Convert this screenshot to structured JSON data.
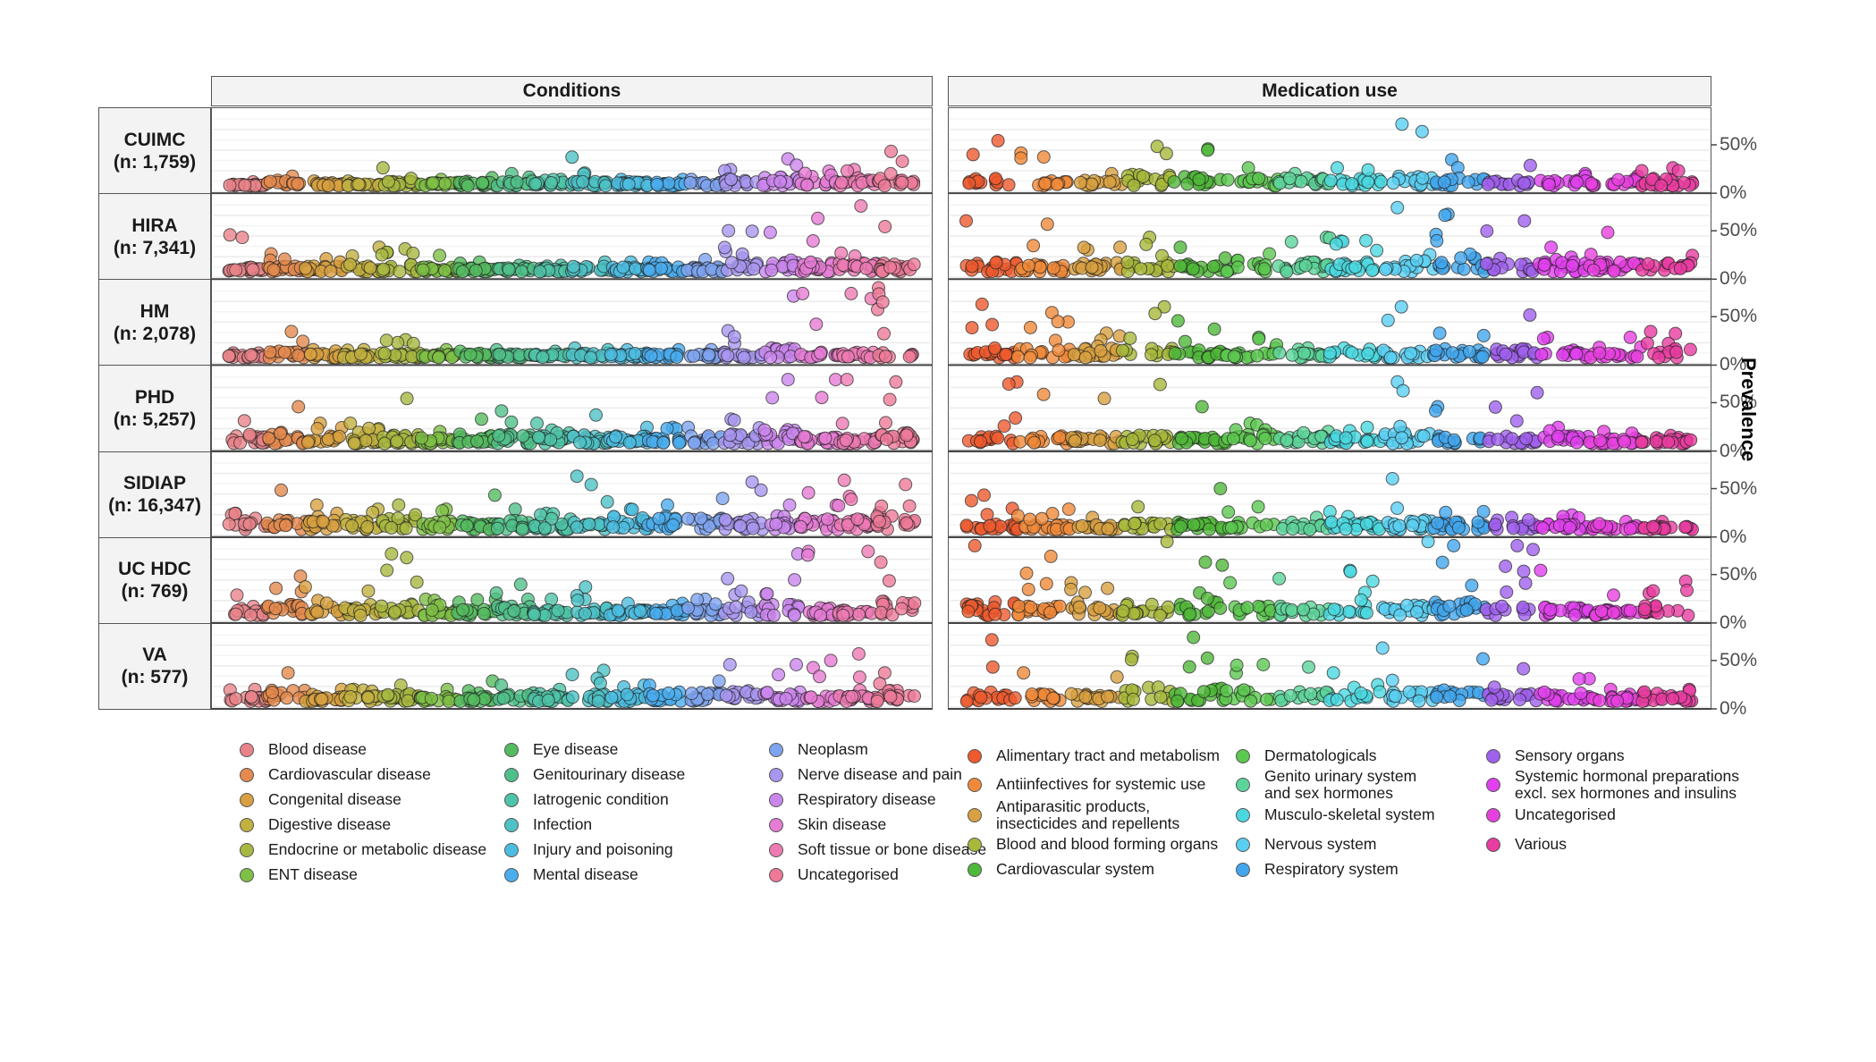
{
  "chart_data": {
    "type": "scatter",
    "title": "",
    "ylabel": "Prevalence",
    "xlabel": "",
    "ylim": [
      0,
      1
    ],
    "yticks": [
      "0%",
      "50%"
    ],
    "grid": true,
    "legend_placement": "bottom",
    "facets_columns": [
      "Conditions",
      "Medication use"
    ],
    "facets_rows": [
      {
        "name": "CUIMC",
        "n": "(n: 1,759)"
      },
      {
        "name": "HIRA",
        "n": "(n: 7,341)"
      },
      {
        "name": "HM",
        "n": "(n: 2,078)"
      },
      {
        "name": "PHD",
        "n": "(n: 5,257)"
      },
      {
        "name": "SIDIAP",
        "n": "(n: 16,347)"
      },
      {
        "name": "UC HDC",
        "n": "(n: 769)"
      },
      {
        "name": "VA",
        "n": "(n: 577)"
      }
    ],
    "conditions_categories": [
      {
        "name": "Blood disease",
        "color": "#E8838A"
      },
      {
        "name": "Cardiovascular disease",
        "color": "#E48A4E"
      },
      {
        "name": "Congenital disease",
        "color": "#D8A040"
      },
      {
        "name": "Digestive disease",
        "color": "#C2B040"
      },
      {
        "name": "Endocrine or metabolic disease",
        "color": "#A9B840"
      },
      {
        "name": "ENT disease",
        "color": "#7EBF45"
      },
      {
        "name": "Eye disease",
        "color": "#55BB60"
      },
      {
        "name": "Genitourinary disease",
        "color": "#50C08A"
      },
      {
        "name": "Iatrogenic condition",
        "color": "#4FC4A8"
      },
      {
        "name": "Infection",
        "color": "#4EC2C6"
      },
      {
        "name": "Injury and poisoning",
        "color": "#4CBDE0"
      },
      {
        "name": "Mental disease",
        "color": "#4AADEE"
      },
      {
        "name": "Neoplasm",
        "color": "#7EA4F0"
      },
      {
        "name": "Nerve disease and pain",
        "color": "#A996F0"
      },
      {
        "name": "Respiratory disease",
        "color": "#CB86EE"
      },
      {
        "name": "Skin disease",
        "color": "#E67CD4"
      },
      {
        "name": "Soft tissue or bone disease",
        "color": "#EE7AB4"
      },
      {
        "name": "Uncategorised",
        "color": "#EE7A98"
      }
    ],
    "medication_categories": [
      {
        "name": "Alimentary tract and metabolism",
        "color": "#EE5A2E"
      },
      {
        "name": "Antiinfectives for systemic use",
        "color": "#F08A3A"
      },
      {
        "name": "Antiparasitic products,\ninsecticides and repellents",
        "color": "#D8A040"
      },
      {
        "name": "Blood and blood forming organs",
        "color": "#A8B83A"
      },
      {
        "name": "Cardiovascular system",
        "color": "#50B83A"
      },
      {
        "name": "Dermatologicals",
        "color": "#5CC850"
      },
      {
        "name": "Genito urinary system\nand sex hormones",
        "color": "#5CD59A"
      },
      {
        "name": "Musculo-skeletal system",
        "color": "#4AD8E0"
      },
      {
        "name": "Nervous system",
        "color": "#5ACFF2"
      },
      {
        "name": "Respiratory system",
        "color": "#42A6EE"
      },
      {
        "name": "Sensory organs",
        "color": "#A060EE"
      },
      {
        "name": "Systemic hormonal preparations\nexcl. sex hormones and insulins",
        "color": "#E040EE"
      },
      {
        "name": "Uncategorised",
        "color": "#E840E0"
      },
      {
        "name": "Various",
        "color": "#E83CA0"
      }
    ],
    "series_summary": {
      "conditions": {
        "CUIMC": [
          [
            0.02,
            0.05
          ],
          [
            0.05,
            0.12
          ],
          [
            0.03,
            0.06
          ],
          [
            0.03,
            0.06
          ],
          [
            0.05,
            0.22
          ],
          [
            0.04,
            0.08
          ],
          [
            0.04,
            0.1
          ],
          [
            0.05,
            0.15
          ],
          [
            0.04,
            0.08
          ],
          [
            0.05,
            0.35
          ],
          [
            0.04,
            0.08
          ],
          [
            0.04,
            0.08
          ],
          [
            0.04,
            0.08
          ],
          [
            0.08,
            0.2
          ],
          [
            0.1,
            0.33
          ],
          [
            0.06,
            0.18
          ],
          [
            0.06,
            0.2
          ],
          [
            0.08,
            0.42
          ]
        ],
        "HIRA": [
          [
            0.05,
            0.45
          ],
          [
            0.06,
            0.22
          ],
          [
            0.06,
            0.16
          ],
          [
            0.08,
            0.3
          ],
          [
            0.08,
            0.28
          ],
          [
            0.05,
            0.2
          ],
          [
            0.04,
            0.12
          ],
          [
            0.04,
            0.08
          ],
          [
            0.04,
            0.08
          ],
          [
            0.06,
            0.12
          ],
          [
            0.05,
            0.12
          ],
          [
            0.05,
            0.12
          ],
          [
            0.05,
            0.15
          ],
          [
            0.1,
            0.5
          ],
          [
            0.1,
            0.48
          ],
          [
            0.1,
            0.65
          ],
          [
            0.1,
            0.8
          ],
          [
            0.1,
            0.55
          ]
        ],
        "HM": [
          [
            0.03,
            0.06
          ],
          [
            0.06,
            0.32
          ],
          [
            0.04,
            0.1
          ],
          [
            0.04,
            0.1
          ],
          [
            0.05,
            0.22
          ],
          [
            0.04,
            0.1
          ],
          [
            0.04,
            0.08
          ],
          [
            0.04,
            0.1
          ],
          [
            0.04,
            0.08
          ],
          [
            0.05,
            0.12
          ],
          [
            0.04,
            0.1
          ],
          [
            0.04,
            0.1
          ],
          [
            0.04,
            0.1
          ],
          [
            0.06,
            0.33
          ],
          [
            0.1,
            0.75
          ],
          [
            0.06,
            0.78
          ],
          [
            0.06,
            0.78
          ],
          [
            0.08,
            0.85
          ]
        ],
        "PHD": [
          [
            0.08,
            0.28
          ],
          [
            0.12,
            0.45
          ],
          [
            0.08,
            0.25
          ],
          [
            0.06,
            0.25
          ],
          [
            0.1,
            0.55
          ],
          [
            0.06,
            0.15
          ],
          [
            0.08,
            0.3
          ],
          [
            0.1,
            0.4
          ],
          [
            0.08,
            0.25
          ],
          [
            0.08,
            0.35
          ],
          [
            0.08,
            0.2
          ],
          [
            0.08,
            0.2
          ],
          [
            0.08,
            0.2
          ],
          [
            0.1,
            0.3
          ],
          [
            0.15,
            0.78
          ],
          [
            0.08,
            0.78
          ],
          [
            0.08,
            0.78
          ],
          [
            0.12,
            0.75
          ]
        ],
        "SIDIAP": [
          [
            0.08,
            0.2
          ],
          [
            0.1,
            0.48
          ],
          [
            0.1,
            0.3
          ],
          [
            0.1,
            0.25
          ],
          [
            0.12,
            0.3
          ],
          [
            0.1,
            0.25
          ],
          [
            0.08,
            0.42
          ],
          [
            0.1,
            0.25
          ],
          [
            0.08,
            0.2
          ],
          [
            0.08,
            0.65
          ],
          [
            0.1,
            0.25
          ],
          [
            0.12,
            0.3
          ],
          [
            0.12,
            0.38
          ],
          [
            0.12,
            0.58
          ],
          [
            0.12,
            0.3
          ],
          [
            0.12,
            0.45
          ],
          [
            0.12,
            0.6
          ],
          [
            0.15,
            0.55
          ]
        ],
        "UC HDC": [
          [
            0.08,
            0.25
          ],
          [
            0.12,
            0.48
          ],
          [
            0.08,
            0.35
          ],
          [
            0.08,
            0.3
          ],
          [
            0.12,
            0.75
          ],
          [
            0.06,
            0.2
          ],
          [
            0.06,
            0.2
          ],
          [
            0.1,
            0.38
          ],
          [
            0.06,
            0.2
          ],
          [
            0.08,
            0.35
          ],
          [
            0.06,
            0.15
          ],
          [
            0.06,
            0.15
          ],
          [
            0.08,
            0.2
          ],
          [
            0.1,
            0.45
          ],
          [
            0.12,
            0.75
          ],
          [
            0.08,
            0.78
          ],
          [
            0.08,
            0.78
          ],
          [
            0.15,
            0.65
          ]
        ],
        "VA": [
          [
            0.06,
            0.15
          ],
          [
            0.12,
            0.35
          ],
          [
            0.06,
            0.15
          ],
          [
            0.06,
            0.15
          ],
          [
            0.08,
            0.2
          ],
          [
            0.06,
            0.15
          ],
          [
            0.08,
            0.25
          ],
          [
            0.08,
            0.2
          ],
          [
            0.06,
            0.15
          ],
          [
            0.08,
            0.38
          ],
          [
            0.08,
            0.2
          ],
          [
            0.08,
            0.2
          ],
          [
            0.1,
            0.25
          ],
          [
            0.12,
            0.45
          ],
          [
            0.1,
            0.45
          ],
          [
            0.06,
            0.5
          ],
          [
            0.06,
            0.58
          ],
          [
            0.12,
            0.35
          ]
        ]
      },
      "medication": {
        "CUIMC": [
          [
            0.08,
            0.55
          ],
          [
            0.06,
            0.4
          ],
          [
            0.06,
            0.15
          ],
          [
            0.12,
            0.48
          ],
          [
            0.1,
            0.45
          ],
          [
            0.08,
            0.22
          ],
          [
            0.08,
            0.15
          ],
          [
            0.08,
            0.22
          ],
          [
            0.1,
            0.75
          ],
          [
            0.08,
            0.32
          ],
          [
            0.06,
            0.25
          ],
          [
            0.06,
            0.15
          ],
          [
            0.05,
            0.12
          ],
          [
            0.08,
            0.22
          ]
        ],
        "HIRA": [
          [
            0.1,
            0.62
          ],
          [
            0.08,
            0.58
          ],
          [
            0.1,
            0.3
          ],
          [
            0.1,
            0.42
          ],
          [
            0.08,
            0.3
          ],
          [
            0.08,
            0.22
          ],
          [
            0.1,
            0.42
          ],
          [
            0.1,
            0.38
          ],
          [
            0.12,
            0.78
          ],
          [
            0.15,
            0.7
          ],
          [
            0.1,
            0.62
          ],
          [
            0.1,
            0.3
          ],
          [
            0.1,
            0.48
          ],
          [
            0.1,
            0.2
          ]
        ],
        "HM": [
          [
            0.08,
            0.65
          ],
          [
            0.1,
            0.55
          ],
          [
            0.1,
            0.3
          ],
          [
            0.1,
            0.62
          ],
          [
            0.08,
            0.45
          ],
          [
            0.06,
            0.25
          ],
          [
            0.06,
            0.12
          ],
          [
            0.06,
            0.12
          ],
          [
            0.08,
            0.62
          ],
          [
            0.08,
            0.3
          ],
          [
            0.1,
            0.52
          ],
          [
            0.08,
            0.25
          ],
          [
            0.05,
            0.25
          ],
          [
            0.1,
            0.32
          ]
        ],
        "PHD": [
          [
            0.08,
            0.75
          ],
          [
            0.08,
            0.6
          ],
          [
            0.08,
            0.55
          ],
          [
            0.1,
            0.72
          ],
          [
            0.08,
            0.45
          ],
          [
            0.1,
            0.25
          ],
          [
            0.08,
            0.15
          ],
          [
            0.08,
            0.2
          ],
          [
            0.12,
            0.75
          ],
          [
            0.1,
            0.45
          ],
          [
            0.08,
            0.62
          ],
          [
            0.08,
            0.2
          ],
          [
            0.05,
            0.15
          ],
          [
            0.05,
            0.1
          ]
        ],
        "SIDIAP": [
          [
            0.06,
            0.42
          ],
          [
            0.05,
            0.25
          ],
          [
            0.05,
            0.15
          ],
          [
            0.08,
            0.28
          ],
          [
            0.08,
            0.5
          ],
          [
            0.08,
            0.28
          ],
          [
            0.06,
            0.15
          ],
          [
            0.08,
            0.22
          ],
          [
            0.1,
            0.62
          ],
          [
            0.08,
            0.22
          ],
          [
            0.06,
            0.15
          ],
          [
            0.06,
            0.18
          ],
          [
            0.04,
            0.1
          ],
          [
            0.04,
            0.1
          ]
        ],
        "UC HDC": [
          [
            0.15,
            0.85
          ],
          [
            0.1,
            0.72
          ],
          [
            0.1,
            0.4
          ],
          [
            0.12,
            0.9
          ],
          [
            0.15,
            0.65
          ],
          [
            0.12,
            0.4
          ],
          [
            0.1,
            0.45
          ],
          [
            0.12,
            0.55
          ],
          [
            0.12,
            0.9
          ],
          [
            0.15,
            0.85
          ],
          [
            0.1,
            0.85
          ],
          [
            0.1,
            0.55
          ],
          [
            0.06,
            0.25
          ],
          [
            0.1,
            0.42
          ]
        ],
        "VA": [
          [
            0.1,
            0.75
          ],
          [
            0.08,
            0.35
          ],
          [
            0.08,
            0.3
          ],
          [
            0.12,
            0.55
          ],
          [
            0.15,
            0.78
          ],
          [
            0.12,
            0.45
          ],
          [
            0.1,
            0.42
          ],
          [
            0.1,
            0.35
          ],
          [
            0.1,
            0.65
          ],
          [
            0.12,
            0.52
          ],
          [
            0.08,
            0.4
          ],
          [
            0.1,
            0.28
          ],
          [
            0.05,
            0.15
          ],
          [
            0.06,
            0.15
          ]
        ]
      },
      "note": "each pair = [typical prevalence, max prevalence] per category, estimated"
    }
  }
}
